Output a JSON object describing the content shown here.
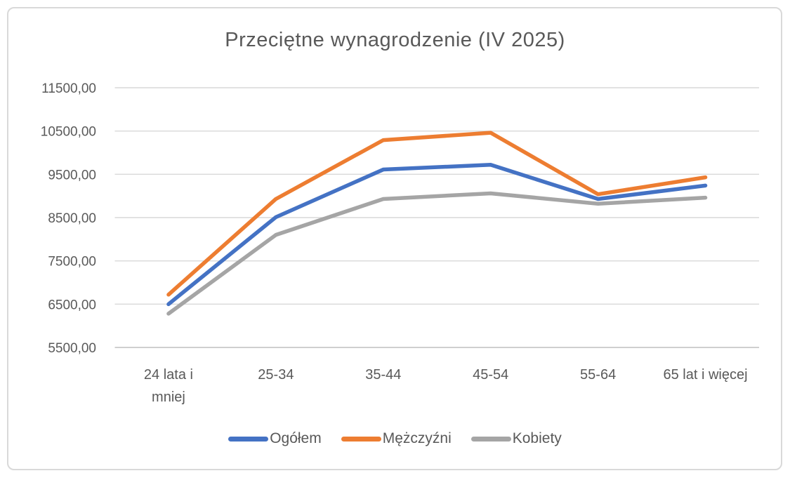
{
  "chart_data": {
    "type": "line",
    "title": "Przeciętne wynagrodzenie (IV 2025)",
    "categories": [
      "24 lata i mniej",
      "25-34",
      "35-44",
      "45-54",
      "55-64",
      "65 lat i więcej"
    ],
    "series": [
      {
        "key": "ogolem",
        "name": "Ogółem",
        "color": "#4472C4",
        "values": [
          6500,
          8510,
          9610,
          9720,
          8930,
          9240
        ]
      },
      {
        "key": "mezczyzni",
        "name": "Mężczyźni",
        "color": "#ED7D31",
        "values": [
          6720,
          8930,
          10290,
          10460,
          9040,
          9430
        ]
      },
      {
        "key": "kobiety",
        "name": "Kobiety",
        "color": "#A5A5A5",
        "values": [
          6280,
          8100,
          8930,
          9060,
          8820,
          8960
        ]
      }
    ],
    "xlabel": "",
    "ylabel": "",
    "ylim": [
      5500,
      11500
    ],
    "ytick_step": 1000,
    "ytick_labels": [
      "5500,00",
      "6500,00",
      "7500,00",
      "8500,00",
      "9500,00",
      "10500,00",
      "11500,00"
    ],
    "xtick_lines": [
      [
        "24 lata i",
        "mniej"
      ],
      [
        "25-34"
      ],
      [
        "35-44"
      ],
      [
        "45-54"
      ],
      [
        "55-64"
      ],
      [
        "65 lat i więcej"
      ]
    ],
    "grid": true,
    "legend_position": "bottom",
    "legend_labels": [
      "Ogółem",
      "Mężczyźni",
      "Kobiety"
    ],
    "colors": {
      "text": "#595959",
      "gridline": "#D9D9D9",
      "axis_line": "#BFBFBF",
      "frame_border": "#D9D9D9",
      "background": "#FFFFFF"
    }
  }
}
